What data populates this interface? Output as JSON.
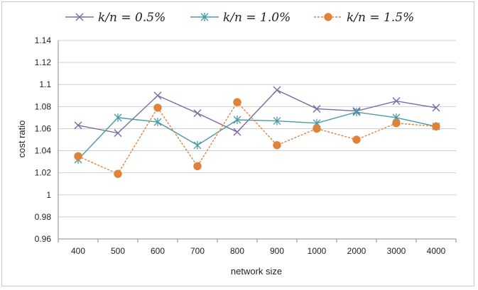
{
  "chart_data": {
    "type": "line",
    "title": "",
    "xlabel": "network size",
    "ylabel": "cost ratio",
    "categories": [
      "400",
      "500",
      "600",
      "700",
      "800",
      "900",
      "1000",
      "2000",
      "3000",
      "4000"
    ],
    "ylim": [
      0.96,
      1.14
    ],
    "yticks": [
      0.96,
      0.98,
      1,
      1.02,
      1.04,
      1.06,
      1.08,
      1.1,
      1.12,
      1.14
    ],
    "ytick_labels": [
      "0.96",
      "0.98",
      "1",
      "1.02",
      "1.04",
      "1.06",
      "1.08",
      "1.1",
      "1.12",
      "1.14"
    ],
    "grid": "horizontal",
    "legend_position": "top",
    "series": [
      {
        "name": "k/n = 0.5%",
        "color": "#7b6aa3",
        "marker": "x",
        "dash": "solid",
        "values": [
          1.063,
          1.056,
          1.09,
          1.074,
          1.057,
          1.095,
          1.078,
          1.076,
          1.085,
          1.079
        ]
      },
      {
        "name": "k/n = 1.0%",
        "color": "#4a9aa6",
        "marker": "asterisk",
        "dash": "solid",
        "values": [
          1.032,
          1.07,
          1.066,
          1.045,
          1.068,
          1.067,
          1.065,
          1.075,
          1.07,
          1.062
        ]
      },
      {
        "name": "k/n = 1.5%",
        "color": "#e0823a",
        "marker": "circle",
        "dash": "dashed",
        "values": [
          1.035,
          1.019,
          1.079,
          1.026,
          1.084,
          1.045,
          1.06,
          1.05,
          1.065,
          1.062
        ]
      }
    ]
  }
}
